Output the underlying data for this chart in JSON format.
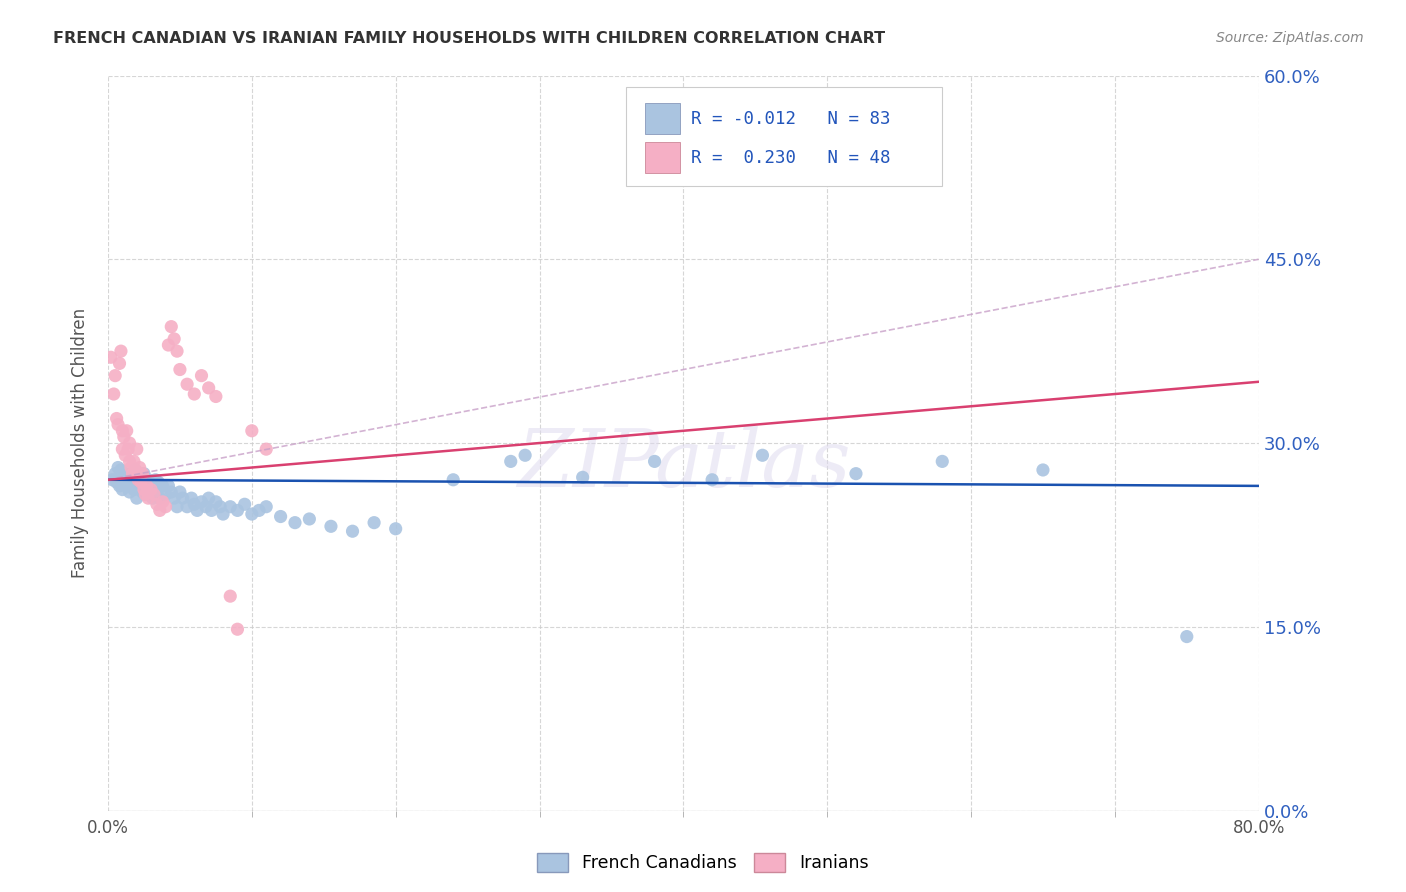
{
  "title": "FRENCH CANADIAN VS IRANIAN FAMILY HOUSEHOLDS WITH CHILDREN CORRELATION CHART",
  "source": "Source: ZipAtlas.com",
  "ylabel_label": "Family Households with Children",
  "legend_label1": "French Canadians",
  "legend_label2": "Iranians",
  "R1": "-0.012",
  "N1": "83",
  "R2": "0.230",
  "N2": "48",
  "color_blue": "#aac4e0",
  "color_pink": "#f5afc5",
  "line_blue": "#1a52b0",
  "line_pink": "#d94070",
  "line_dash_color": "#c8a0c8",
  "watermark_color": "#ddd8ee",
  "background": "#ffffff",
  "blue_scatter": [
    [
      0.003,
      0.27
    ],
    [
      0.005,
      0.275
    ],
    [
      0.006,
      0.268
    ],
    [
      0.007,
      0.28
    ],
    [
      0.008,
      0.272
    ],
    [
      0.008,
      0.265
    ],
    [
      0.009,
      0.278
    ],
    [
      0.01,
      0.274
    ],
    [
      0.01,
      0.262
    ],
    [
      0.011,
      0.27
    ],
    [
      0.012,
      0.268
    ],
    [
      0.012,
      0.275
    ],
    [
      0.013,
      0.272
    ],
    [
      0.014,
      0.265
    ],
    [
      0.015,
      0.27
    ],
    [
      0.015,
      0.26
    ],
    [
      0.016,
      0.275
    ],
    [
      0.017,
      0.268
    ],
    [
      0.018,
      0.272
    ],
    [
      0.018,
      0.262
    ],
    [
      0.019,
      0.278
    ],
    [
      0.02,
      0.265
    ],
    [
      0.02,
      0.255
    ],
    [
      0.021,
      0.27
    ],
    [
      0.022,
      0.268
    ],
    [
      0.023,
      0.272
    ],
    [
      0.024,
      0.26
    ],
    [
      0.025,
      0.265
    ],
    [
      0.025,
      0.275
    ],
    [
      0.026,
      0.258
    ],
    [
      0.027,
      0.265
    ],
    [
      0.028,
      0.27
    ],
    [
      0.029,
      0.26
    ],
    [
      0.03,
      0.268
    ],
    [
      0.031,
      0.255
    ],
    [
      0.032,
      0.262
    ],
    [
      0.033,
      0.27
    ],
    [
      0.034,
      0.26
    ],
    [
      0.035,
      0.268
    ],
    [
      0.036,
      0.255
    ],
    [
      0.038,
      0.265
    ],
    [
      0.04,
      0.258
    ],
    [
      0.042,
      0.265
    ],
    [
      0.044,
      0.26
    ],
    [
      0.046,
      0.255
    ],
    [
      0.048,
      0.248
    ],
    [
      0.05,
      0.26
    ],
    [
      0.052,
      0.255
    ],
    [
      0.055,
      0.248
    ],
    [
      0.058,
      0.255
    ],
    [
      0.06,
      0.25
    ],
    [
      0.062,
      0.245
    ],
    [
      0.065,
      0.252
    ],
    [
      0.068,
      0.248
    ],
    [
      0.07,
      0.255
    ],
    [
      0.072,
      0.245
    ],
    [
      0.075,
      0.252
    ],
    [
      0.078,
      0.248
    ],
    [
      0.08,
      0.242
    ],
    [
      0.085,
      0.248
    ],
    [
      0.09,
      0.245
    ],
    [
      0.095,
      0.25
    ],
    [
      0.1,
      0.242
    ],
    [
      0.105,
      0.245
    ],
    [
      0.11,
      0.248
    ],
    [
      0.12,
      0.24
    ],
    [
      0.13,
      0.235
    ],
    [
      0.14,
      0.238
    ],
    [
      0.155,
      0.232
    ],
    [
      0.17,
      0.228
    ],
    [
      0.185,
      0.235
    ],
    [
      0.2,
      0.23
    ],
    [
      0.24,
      0.27
    ],
    [
      0.28,
      0.285
    ],
    [
      0.29,
      0.29
    ],
    [
      0.33,
      0.272
    ],
    [
      0.38,
      0.285
    ],
    [
      0.42,
      0.27
    ],
    [
      0.455,
      0.29
    ],
    [
      0.52,
      0.275
    ],
    [
      0.58,
      0.285
    ],
    [
      0.65,
      0.278
    ],
    [
      0.75,
      0.142
    ]
  ],
  "pink_scatter": [
    [
      0.002,
      0.37
    ],
    [
      0.004,
      0.34
    ],
    [
      0.005,
      0.355
    ],
    [
      0.006,
      0.32
    ],
    [
      0.007,
      0.315
    ],
    [
      0.008,
      0.365
    ],
    [
      0.009,
      0.375
    ],
    [
      0.01,
      0.31
    ],
    [
      0.01,
      0.295
    ],
    [
      0.011,
      0.305
    ],
    [
      0.012,
      0.29
    ],
    [
      0.013,
      0.31
    ],
    [
      0.014,
      0.295
    ],
    [
      0.015,
      0.285
    ],
    [
      0.015,
      0.3
    ],
    [
      0.016,
      0.28
    ],
    [
      0.017,
      0.275
    ],
    [
      0.018,
      0.285
    ],
    [
      0.019,
      0.278
    ],
    [
      0.02,
      0.295
    ],
    [
      0.021,
      0.27
    ],
    [
      0.022,
      0.28
    ],
    [
      0.023,
      0.268
    ],
    [
      0.024,
      0.275
    ],
    [
      0.025,
      0.262
    ],
    [
      0.026,
      0.258
    ],
    [
      0.027,
      0.265
    ],
    [
      0.028,
      0.255
    ],
    [
      0.03,
      0.262
    ],
    [
      0.032,
      0.258
    ],
    [
      0.034,
      0.25
    ],
    [
      0.036,
      0.245
    ],
    [
      0.038,
      0.252
    ],
    [
      0.04,
      0.248
    ],
    [
      0.042,
      0.38
    ],
    [
      0.044,
      0.395
    ],
    [
      0.046,
      0.385
    ],
    [
      0.048,
      0.375
    ],
    [
      0.05,
      0.36
    ],
    [
      0.055,
      0.348
    ],
    [
      0.06,
      0.34
    ],
    [
      0.065,
      0.355
    ],
    [
      0.07,
      0.345
    ],
    [
      0.075,
      0.338
    ],
    [
      0.085,
      0.175
    ],
    [
      0.09,
      0.148
    ],
    [
      0.1,
      0.31
    ],
    [
      0.11,
      0.295
    ]
  ],
  "x_min": 0.0,
  "x_max": 0.8,
  "y_min": 0.0,
  "y_max": 0.6,
  "blue_line": {
    "x0": 0.0,
    "y0": 0.27,
    "x1": 0.8,
    "y1": 0.265
  },
  "pink_line": {
    "x0": 0.0,
    "y0": 0.27,
    "x1": 0.8,
    "y1": 0.35
  },
  "dash_line": {
    "x0": 0.0,
    "y0": 0.27,
    "x1": 0.8,
    "y1": 0.45
  }
}
